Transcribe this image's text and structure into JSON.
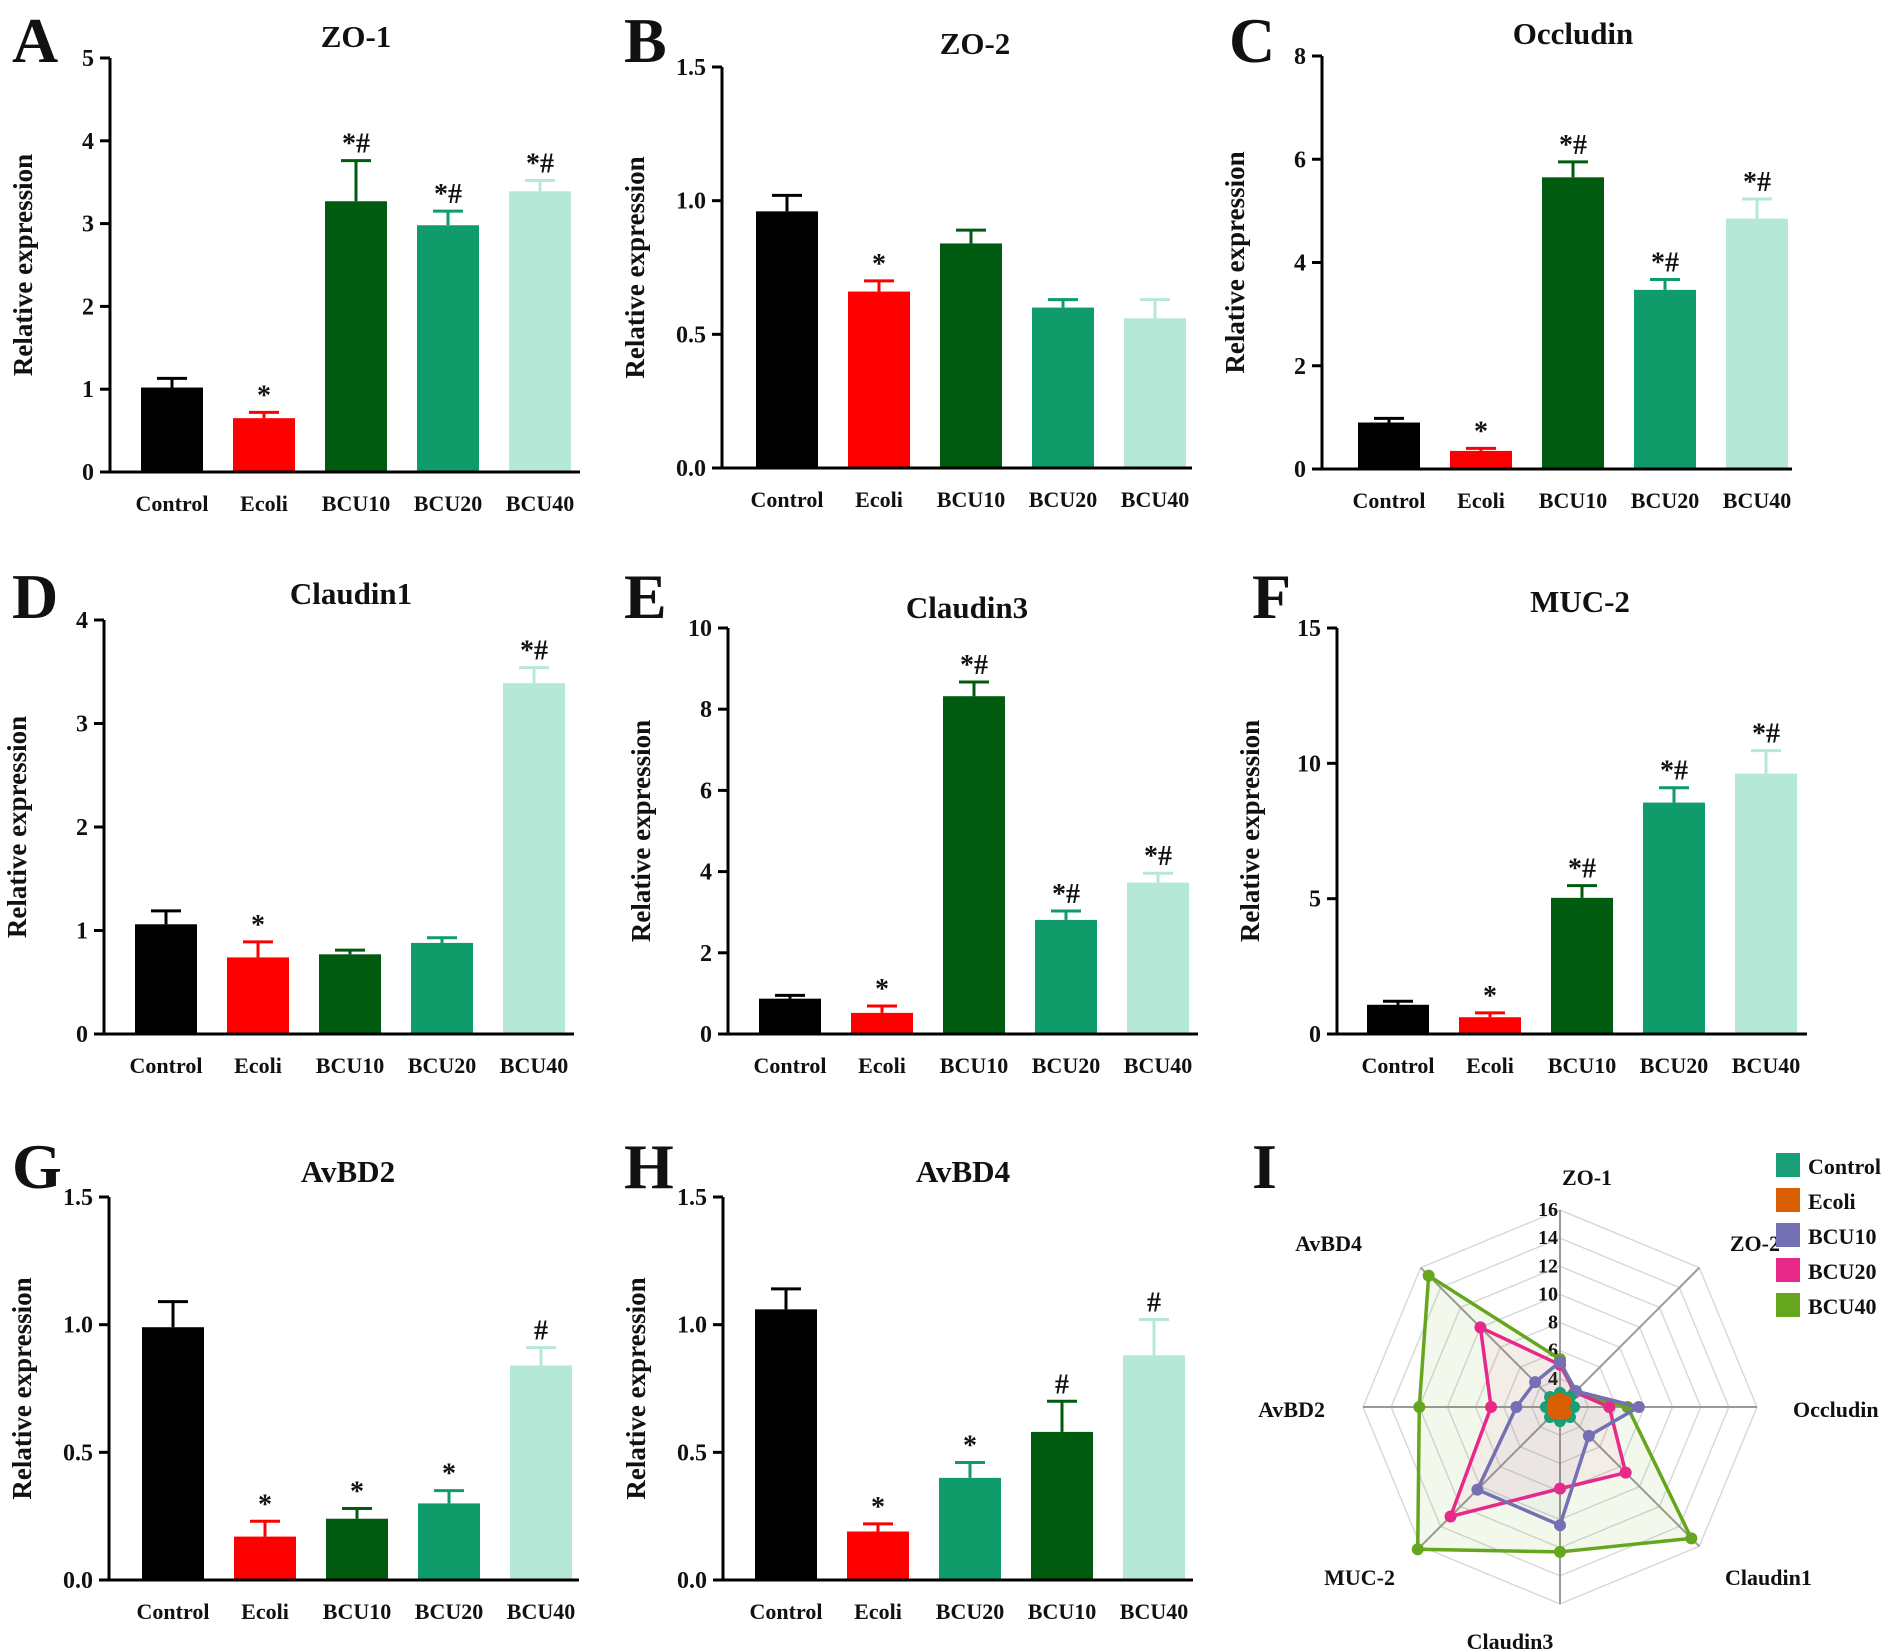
{
  "figure": {
    "colors": {
      "Control": "#000000",
      "Ecoli": "#ff0000",
      "BCU10": "#005a0f",
      "BCU20": "#0f9b6a",
      "BCU40": "#b5e8d6",
      "radar_Control": "#1a9e77",
      "radar_Ecoli": "#d95f02",
      "radar_BCU10": "#7570b3",
      "radar_BCU20": "#e7298a",
      "radar_BCU40": "#66a61e"
    }
  },
  "chart_data": [
    {
      "panel": "A",
      "type": "bar",
      "title": "ZO-1",
      "ylabel": "Relative expression",
      "ylim": [
        0,
        5
      ],
      "yticks": [
        "0",
        "1",
        "2",
        "3",
        "4",
        "5"
      ],
      "categories": [
        "Control",
        "Ecoli",
        "BCU10",
        "BCU20",
        "BCU40"
      ],
      "values": [
        1.02,
        0.65,
        3.27,
        2.98,
        3.39
      ],
      "errors": [
        0.11,
        0.07,
        0.49,
        0.17,
        0.13
      ],
      "annotations": [
        "",
        "*",
        "*#",
        "*#",
        "*#"
      ]
    },
    {
      "panel": "B",
      "type": "bar",
      "title": "ZO-2",
      "ylabel": "Relative expression",
      "ylim": [
        0,
        1.5
      ],
      "yticks": [
        "0.0",
        "0.5",
        "1.0",
        "1.5"
      ],
      "categories": [
        "Control",
        "Ecoli",
        "BCU10",
        "BCU20",
        "BCU40"
      ],
      "values": [
        0.96,
        0.66,
        0.84,
        0.6,
        0.56
      ],
      "errors": [
        0.06,
        0.04,
        0.05,
        0.03,
        0.07
      ],
      "annotations": [
        "",
        "*",
        "",
        "",
        ""
      ]
    },
    {
      "panel": "C",
      "type": "bar",
      "title": "Occludin",
      "ylabel": "Relative expression",
      "ylim": [
        0,
        8
      ],
      "yticks": [
        "0",
        "2",
        "4",
        "6",
        "8"
      ],
      "categories": [
        "Control",
        "Ecoli",
        "BCU10",
        "BCU20",
        "BCU40"
      ],
      "values": [
        0.9,
        0.35,
        5.65,
        3.47,
        4.85
      ],
      "errors": [
        0.08,
        0.05,
        0.3,
        0.2,
        0.38
      ],
      "annotations": [
        "",
        "*",
        "*#",
        "*#",
        "*#"
      ]
    },
    {
      "panel": "D",
      "type": "bar",
      "title": "Claudin1",
      "ylabel": "Relative expression",
      "ylim": [
        0,
        4
      ],
      "yticks": [
        "0",
        "1",
        "2",
        "3",
        "4"
      ],
      "categories": [
        "Control",
        "Ecoli",
        "BCU10",
        "BCU20",
        "BCU40"
      ],
      "values": [
        1.06,
        0.74,
        0.77,
        0.88,
        3.39
      ],
      "errors": [
        0.13,
        0.15,
        0.04,
        0.05,
        0.15
      ],
      "annotations": [
        "",
        "*",
        "",
        "",
        "*#"
      ]
    },
    {
      "panel": "E",
      "type": "bar",
      "title": "Claudin3",
      "ylabel": "Relative expression",
      "ylim": [
        0,
        10
      ],
      "yticks": [
        "0",
        "2",
        "4",
        "6",
        "8",
        "10"
      ],
      "categories": [
        "Control",
        "Ecoli",
        "BCU10",
        "BCU20",
        "BCU40"
      ],
      "values": [
        0.87,
        0.52,
        8.32,
        2.81,
        3.73
      ],
      "errors": [
        0.08,
        0.17,
        0.35,
        0.22,
        0.23
      ],
      "annotations": [
        "",
        "*",
        "*#",
        "*#",
        "*#"
      ]
    },
    {
      "panel": "F",
      "type": "bar",
      "title": "MUC-2",
      "ylabel": "Relative expression",
      "ylim": [
        0,
        15
      ],
      "yticks": [
        "0",
        "5",
        "10",
        "15"
      ],
      "categories": [
        "Control",
        "Ecoli",
        "BCU10",
        "BCU20",
        "BCU40"
      ],
      "values": [
        1.08,
        0.62,
        5.03,
        8.55,
        9.62
      ],
      "errors": [
        0.13,
        0.16,
        0.45,
        0.55,
        0.85
      ],
      "annotations": [
        "",
        "*",
        "*#",
        "*#",
        "*#"
      ]
    },
    {
      "panel": "G",
      "type": "bar",
      "title": "AvBD2",
      "ylabel": "Relative expression",
      "ylim": [
        0,
        1.5
      ],
      "yticks": [
        "0.0",
        "0.5",
        "1.0",
        "1.5"
      ],
      "categories": [
        "Control",
        "Ecoli",
        "BCU10",
        "BCU20",
        "BCU40"
      ],
      "values": [
        0.99,
        0.17,
        0.24,
        0.3,
        0.84
      ],
      "errors": [
        0.1,
        0.06,
        0.04,
        0.05,
        0.07
      ],
      "annotations": [
        "",
        "*",
        "*",
        "*",
        "#"
      ]
    },
    {
      "panel": "H",
      "type": "bar",
      "title": "AvBD4",
      "ylabel": "Relative expression",
      "ylim": [
        0,
        1.5
      ],
      "yticks": [
        "0.0",
        "0.5",
        "1.0",
        "1.5"
      ],
      "categories": [
        "Control",
        "Ecoli",
        "BCU20",
        "BCU10",
        "BCU40"
      ],
      "values": [
        1.06,
        0.19,
        0.4,
        0.58,
        0.88
      ],
      "errors": [
        0.08,
        0.03,
        0.06,
        0.12,
        0.14
      ],
      "annotations": [
        "",
        "*",
        "*",
        "#",
        "#"
      ]
    },
    {
      "panel": "I",
      "type": "radar",
      "axes": [
        "ZO-1",
        "ZO-2",
        "Occludin",
        "Claudin1",
        "Claudin3",
        "MUC-2",
        "AvBD2",
        "AvBD4"
      ],
      "rmin": 2,
      "rmax": 16,
      "rticks": [
        "16",
        "14",
        "12",
        "10",
        "8",
        "6",
        "4"
      ],
      "series": [
        {
          "name": "Control",
          "values": [
            3,
            3,
            3,
            3,
            3,
            3,
            3,
            3
          ]
        },
        {
          "name": "Ecoli",
          "values": [
            2.6,
            2.6,
            2.3,
            2.6,
            2.5,
            2.6,
            2.5,
            2.6
          ]
        },
        {
          "name": "BCU10",
          "values": [
            5.2,
            3.6,
            7.6,
            4.9,
            10.4,
            10.3,
            5.1,
            4.5
          ]
        },
        {
          "name": "BCU20",
          "values": [
            5.0,
            3.5,
            5.5,
            8.6,
            7.8,
            13.0,
            6.9,
            10.0
          ]
        },
        {
          "name": "BCU40",
          "values": [
            5.4,
            3.4,
            6.8,
            15.2,
            12.3,
            16.3,
            12.0,
            15.2
          ]
        }
      ]
    }
  ]
}
